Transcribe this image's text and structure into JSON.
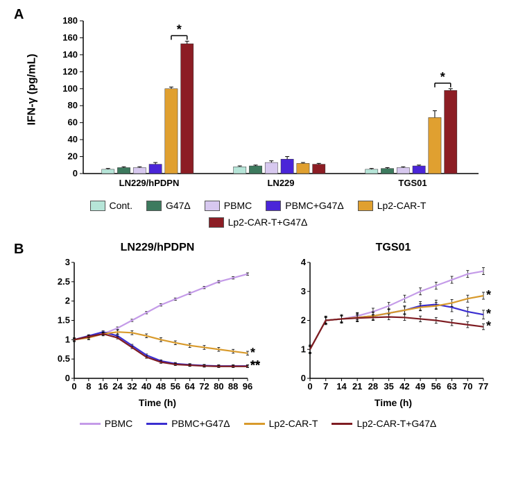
{
  "panelA": {
    "label": "A",
    "type": "bar",
    "ylabel": "IFN-γ (pg/mL)",
    "ylim": [
      0,
      180
    ],
    "ytick_step": 20,
    "groups": [
      "LN229/hPDPN",
      "LN229",
      "TGS01"
    ],
    "series": [
      {
        "label": "Cont.",
        "color": "#b6e5d8"
      },
      {
        "label": "G47Δ",
        "color": "#3d7a5e"
      },
      {
        "label": "PBMC",
        "color": "#d7c8ef"
      },
      {
        "label": "PBMC+G47Δ",
        "color": "#4a25d8"
      },
      {
        "label": "Lp2-CAR-T",
        "color": "#e0a030"
      },
      {
        "label": "Lp2-CAR-T+G47Δ",
        "color": "#8c1d24"
      }
    ],
    "values": [
      [
        5,
        7,
        7,
        11,
        100,
        153
      ],
      [
        8,
        9,
        13,
        17,
        12,
        11
      ],
      [
        5,
        6,
        7,
        9,
        66,
        98
      ]
    ],
    "errors": [
      [
        1,
        1,
        1,
        2,
        2,
        3
      ],
      [
        1,
        1,
        2,
        3,
        1,
        1
      ],
      [
        1,
        1,
        1,
        1,
        8,
        2
      ]
    ],
    "sig_pairs": [
      {
        "group": 0,
        "a": 4,
        "b": 5,
        "symbol": "*"
      },
      {
        "group": 2,
        "a": 4,
        "b": 5,
        "symbol": "*"
      }
    ],
    "bar_width": 0.8,
    "background_color": "#ffffff",
    "tick_color": "#000000"
  },
  "panelB": {
    "label": "B",
    "type": "line",
    "xlabel": "Time (h)",
    "legend": [
      {
        "label": "PBMC",
        "color": "#c49be8"
      },
      {
        "label": "PBMC+G47Δ",
        "color": "#3a2ed0"
      },
      {
        "label": "Lp2-CAR-T",
        "color": "#d89a2c"
      },
      {
        "label": "Lp2-CAR-T+G47Δ",
        "color": "#7e1c22"
      }
    ],
    "subplots": [
      {
        "title": "LN229/hPDPN",
        "xlim": [
          0,
          96
        ],
        "xtick_step": 8,
        "ylim": [
          0,
          3
        ],
        "yticks": [
          0,
          0.5,
          1,
          1.5,
          2,
          2.5,
          3
        ],
        "series": [
          {
            "color": "#c49be8",
            "y": [
              1,
              1.05,
              1.15,
              1.3,
              1.5,
              1.7,
              1.9,
              2.05,
              2.2,
              2.35,
              2.5,
              2.6,
              2.7
            ],
            "err": 0.03
          },
          {
            "color": "#3a2ed0",
            "y": [
              1,
              1.1,
              1.2,
              1.1,
              0.85,
              0.6,
              0.45,
              0.38,
              0.35,
              0.33,
              0.32,
              0.32,
              0.32
            ],
            "err": 0.03,
            "sig": "**"
          },
          {
            "color": "#d89a2c",
            "y": [
              1,
              1.05,
              1.15,
              1.2,
              1.18,
              1.1,
              1.0,
              0.92,
              0.85,
              0.8,
              0.75,
              0.7,
              0.65
            ],
            "err": 0.05,
            "sig": "*"
          },
          {
            "color": "#7e1c22",
            "y": [
              1,
              1.08,
              1.15,
              1.05,
              0.8,
              0.55,
              0.42,
              0.36,
              0.34,
              0.32,
              0.31,
              0.31,
              0.31
            ],
            "err": 0.03,
            "sig": "**"
          }
        ]
      },
      {
        "title": "TGS01",
        "xlim": [
          0,
          77
        ],
        "xtick_step": 7,
        "ylim": [
          0,
          4
        ],
        "yticks": [
          0,
          1,
          2,
          3,
          4
        ],
        "series": [
          {
            "color": "#c49be8",
            "y": [
              1,
              2.0,
              2.05,
              2.15,
              2.3,
              2.5,
              2.75,
              3.0,
              3.2,
              3.4,
              3.6,
              3.7
            ],
            "err": 0.12
          },
          {
            "color": "#3a2ed0",
            "y": [
              1,
              2.0,
              2.05,
              2.1,
              2.15,
              2.25,
              2.35,
              2.5,
              2.55,
              2.45,
              2.3,
              2.2
            ],
            "err": 0.15,
            "sig": "*"
          },
          {
            "color": "#d89a2c",
            "y": [
              1,
              2.0,
              2.05,
              2.1,
              2.15,
              2.25,
              2.35,
              2.45,
              2.5,
              2.6,
              2.75,
              2.85
            ],
            "err": 0.12,
            "sig": "*"
          },
          {
            "color": "#7e1c22",
            "y": [
              1,
              2.0,
              2.05,
              2.08,
              2.1,
              2.12,
              2.1,
              2.05,
              2.0,
              1.92,
              1.85,
              1.78
            ],
            "err": 0.1,
            "sig": "*"
          }
        ]
      }
    ]
  }
}
